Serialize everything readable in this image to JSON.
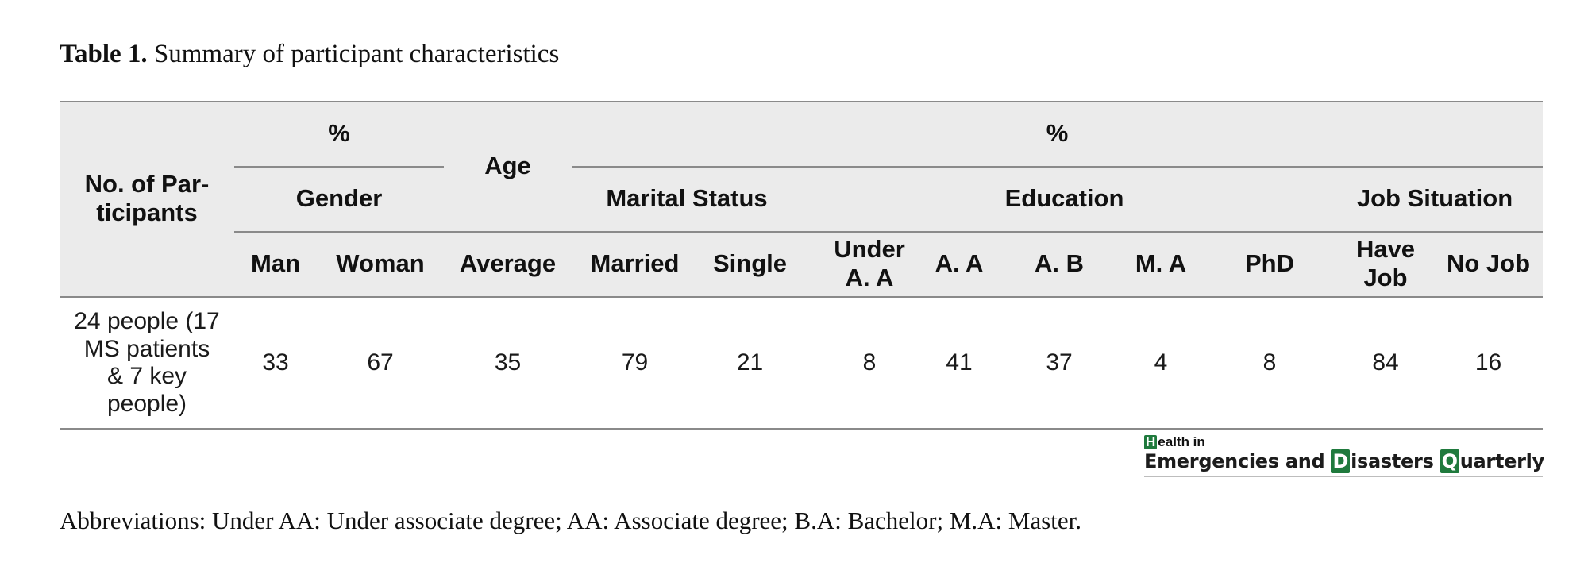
{
  "caption": {
    "label": "Table 1.",
    "text": "Summary of participant characteristics"
  },
  "table": {
    "header": {
      "participants": "No. of Par-ticipants",
      "percent_left": "%",
      "age": "Age",
      "percent_right": "%",
      "gender": "Gender",
      "marital_status": "Marital Status",
      "education": "Education",
      "job_situation": "Job Situation"
    },
    "columns": [
      "Man",
      "Woman",
      "Average",
      "Married",
      "Single",
      "Under A. A",
      "A. A",
      "A. B",
      "M. A",
      "PhD",
      "Have Job",
      "No Job"
    ],
    "row": {
      "participants": "24 people (17 MS patients & 7 key people)",
      "values": [
        "33",
        "67",
        "35",
        "79",
        "21",
        "8",
        "41",
        "37",
        "4",
        "8",
        "84",
        "16"
      ]
    }
  },
  "logo": {
    "top_initial": "H",
    "top_rest": "ealth in",
    "word1": "Emergencies and",
    "d_initial": "D",
    "word2": "isasters",
    "q_initial": "Q",
    "word3": "uarterly"
  },
  "footnote": "Abbreviations: Under AA: Under associate degree; AA: Associate degree; B.A: Bachelor; M.A: Master.",
  "colors": {
    "header_bg": "#ebebeb",
    "rule": "#8a8a8a",
    "logo_green": "#1f7a3d"
  }
}
